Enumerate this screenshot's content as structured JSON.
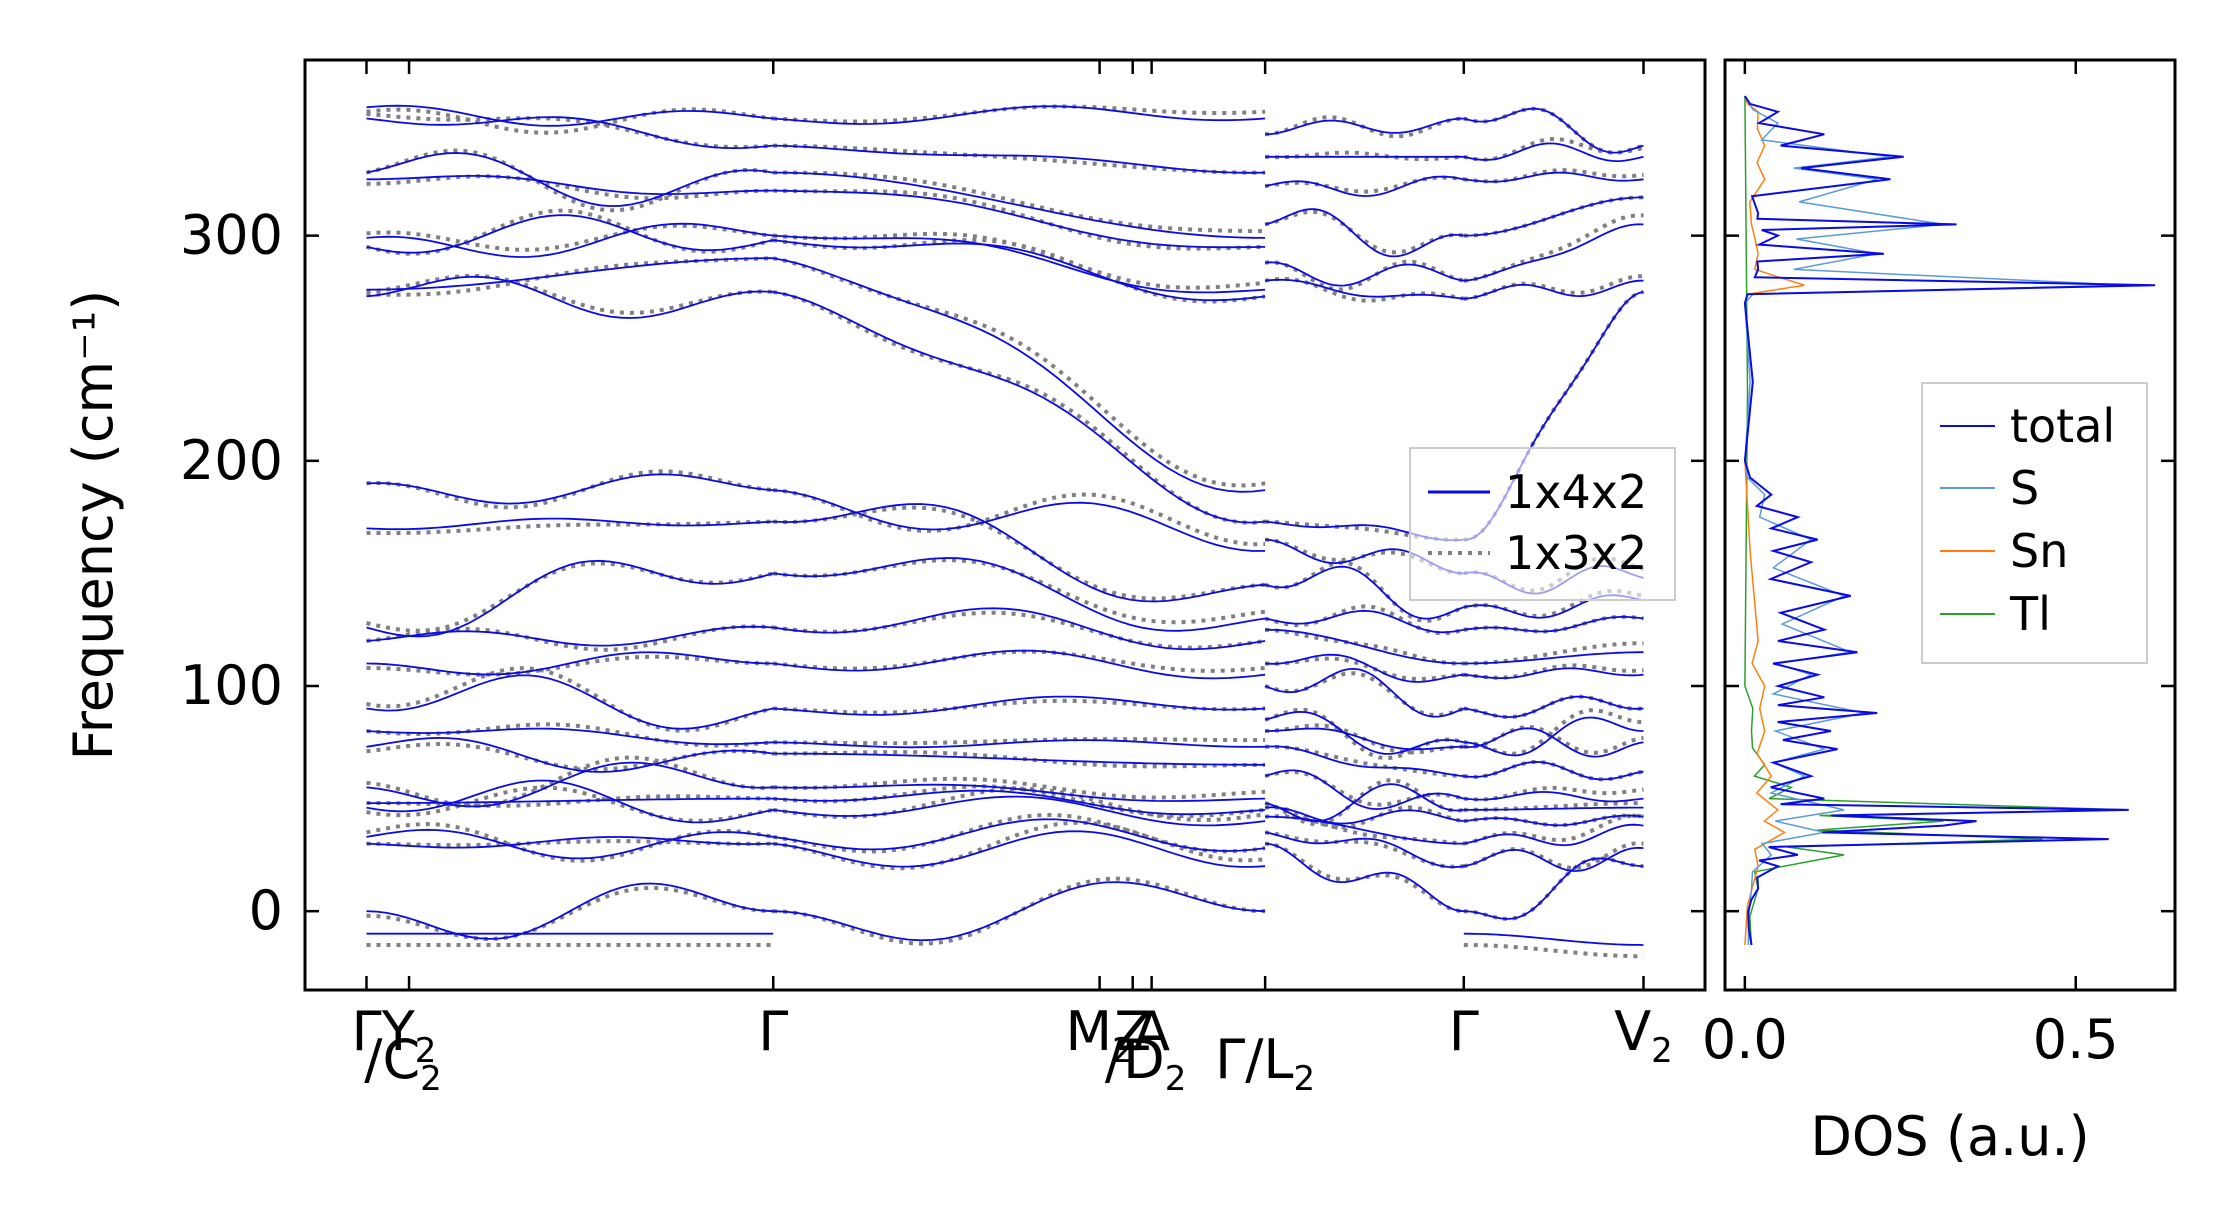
{
  "chart_data": [
    {
      "type": "line",
      "title": "",
      "ylabel": "Frequency (cm⁻¹)",
      "ylim": [
        -35,
        378
      ],
      "yticks": [
        0,
        100,
        200,
        300
      ],
      "kpath_labels": [
        {
          "main": "Γ",
          "sub": "",
          "k": 0
        },
        {
          "main": "Y",
          "sub": "2",
          "k": 0.9
        },
        {
          "main": "Γ",
          "sub": "",
          "k": 8.6
        },
        {
          "main": "M",
          "sub": "2",
          "k": 15.5
        },
        {
          "main": "A",
          "sub": "",
          "k": 16.6
        },
        {
          "main": "Z",
          "sub": "",
          "k": 16.2
        },
        {
          "main": "Γ",
          "sub": "",
          "k": 23.2
        },
        {
          "main": "V",
          "sub": "2",
          "k": 27.0
        }
      ],
      "kpath_sub_labels": [
        {
          "main": "/C",
          "sub": "2",
          "k": 0.9
        },
        {
          "main": "/D",
          "sub": "2",
          "k": 16.6
        },
        {
          "main": "Γ/L",
          "sub": "2",
          "k": 19.0
        }
      ],
      "kticks": [
        0,
        0.9,
        8.6,
        15.5,
        16.2,
        16.6,
        19.0,
        23.2,
        27.0
      ],
      "segment_break": 19.0,
      "xlim": [
        -1.3,
        28.3
      ],
      "series": [
        {
          "name": "1x4x2",
          "color": "#0a0ae6",
          "style": "solid"
        },
        {
          "name": "1x3x2",
          "color": "#808080",
          "style": "dotted"
        }
      ],
      "bands": {
        "left_start": [
          0,
          30,
          33,
          46,
          48,
          55,
          73,
          80,
          90,
          110,
          120,
          126,
          170,
          190,
          273,
          276,
          295,
          299,
          325,
          328,
          352,
          357
        ],
        "left_gamma": [
          0,
          30,
          33,
          45,
          50,
          55,
          70,
          75,
          90,
          110,
          126,
          150,
          173,
          187,
          275,
          290,
          298,
          300,
          320,
          328,
          340,
          352
        ],
        "left_end": [
          0,
          20,
          28,
          40,
          45,
          50,
          65,
          73,
          90,
          105,
          120,
          130,
          145,
          160,
          173,
          187,
          273,
          276,
          295,
          299,
          328,
          352
        ],
        "right_start": [
          30,
          35,
          42,
          46,
          48,
          60,
          73,
          80,
          85,
          100,
          110,
          125,
          130,
          145,
          165,
          173,
          280,
          288,
          305,
          322,
          335,
          345
        ],
        "right_gamma": [
          0,
          20,
          30,
          40,
          45,
          50,
          60,
          73,
          75,
          90,
          105,
          110,
          125,
          135,
          150,
          165,
          272,
          280,
          300,
          325,
          335,
          352
        ],
        "right_end": [
          20,
          28,
          38,
          42,
          46,
          50,
          62,
          75,
          80,
          90,
          105,
          115,
          130,
          138,
          148,
          275,
          280,
          305,
          317,
          325,
          335,
          340
        ],
        "acoustic_lowest": -10
      }
    },
    {
      "type": "line",
      "title": "",
      "xlabel": "DOS (a.u.)",
      "xlim": [
        -0.03,
        0.65
      ],
      "xticks": [
        0.0,
        0.5
      ],
      "ylim": [
        -35,
        378
      ],
      "series": [
        {
          "name": "total",
          "color": "#0a0ae6"
        },
        {
          "name": "S",
          "color": "#5b9bd5"
        },
        {
          "name": "Sn",
          "color": "#ff7f0e"
        },
        {
          "name": "Tl",
          "color": "#2ca02c"
        }
      ],
      "peaks": {
        "total": [
          [
            -15,
            0.01
          ],
          [
            0,
            0.005
          ],
          [
            10,
            0.02
          ],
          [
            20,
            0.05
          ],
          [
            25,
            0.08
          ],
          [
            32,
            0.55
          ],
          [
            38,
            0.3
          ],
          [
            40,
            0.35
          ],
          [
            45,
            0.58
          ],
          [
            50,
            0.12
          ],
          [
            60,
            0.1
          ],
          [
            72,
            0.14
          ],
          [
            80,
            0.13
          ],
          [
            88,
            0.2
          ],
          [
            95,
            0.12
          ],
          [
            105,
            0.11
          ],
          [
            115,
            0.17
          ],
          [
            125,
            0.12
          ],
          [
            140,
            0.16
          ],
          [
            155,
            0.1
          ],
          [
            165,
            0.11
          ],
          [
            175,
            0.08
          ],
          [
            185,
            0.04
          ],
          [
            200,
            0.0
          ],
          [
            270,
            0.0
          ],
          [
            278,
            0.62
          ],
          [
            285,
            0.02
          ],
          [
            292,
            0.21
          ],
          [
            300,
            0.05
          ],
          [
            305,
            0.32
          ],
          [
            310,
            0.02
          ],
          [
            325,
            0.22
          ],
          [
            335,
            0.24
          ],
          [
            345,
            0.12
          ],
          [
            355,
            0.05
          ],
          [
            362,
            0.0
          ]
        ],
        "S": [
          [
            -15,
            0.005
          ],
          [
            10,
            0.01
          ],
          [
            25,
            0.04
          ],
          [
            35,
            0.12
          ],
          [
            45,
            0.15
          ],
          [
            60,
            0.09
          ],
          [
            72,
            0.12
          ],
          [
            88,
            0.18
          ],
          [
            105,
            0.1
          ],
          [
            115,
            0.16
          ],
          [
            140,
            0.15
          ],
          [
            165,
            0.1
          ],
          [
            185,
            0.03
          ],
          [
            200,
            0.0
          ],
          [
            270,
            0.0
          ],
          [
            278,
            0.58
          ],
          [
            292,
            0.2
          ],
          [
            305,
            0.3
          ],
          [
            325,
            0.2
          ],
          [
            335,
            0.22
          ],
          [
            350,
            0.05
          ],
          [
            362,
            0.0
          ]
        ],
        "Sn": [
          [
            -15,
            0.0
          ],
          [
            20,
            0.02
          ],
          [
            35,
            0.06
          ],
          [
            45,
            0.05
          ],
          [
            60,
            0.04
          ],
          [
            80,
            0.03
          ],
          [
            100,
            0.03
          ],
          [
            120,
            0.02
          ],
          [
            200,
            0.0
          ],
          [
            270,
            0.0
          ],
          [
            278,
            0.09
          ],
          [
            292,
            0.02
          ],
          [
            305,
            0.01
          ],
          [
            325,
            0.03
          ],
          [
            340,
            0.03
          ],
          [
            355,
            0.02
          ],
          [
            362,
            0.0
          ]
        ],
        "Tl": [
          [
            -15,
            0.01
          ],
          [
            10,
            0.02
          ],
          [
            25,
            0.15
          ],
          [
            32,
            0.45
          ],
          [
            40,
            0.3
          ],
          [
            45,
            0.58
          ],
          [
            55,
            0.07
          ],
          [
            65,
            0.03
          ],
          [
            80,
            0.01
          ],
          [
            100,
            0.0
          ],
          [
            362,
            0.0
          ]
        ]
      }
    }
  ]
}
